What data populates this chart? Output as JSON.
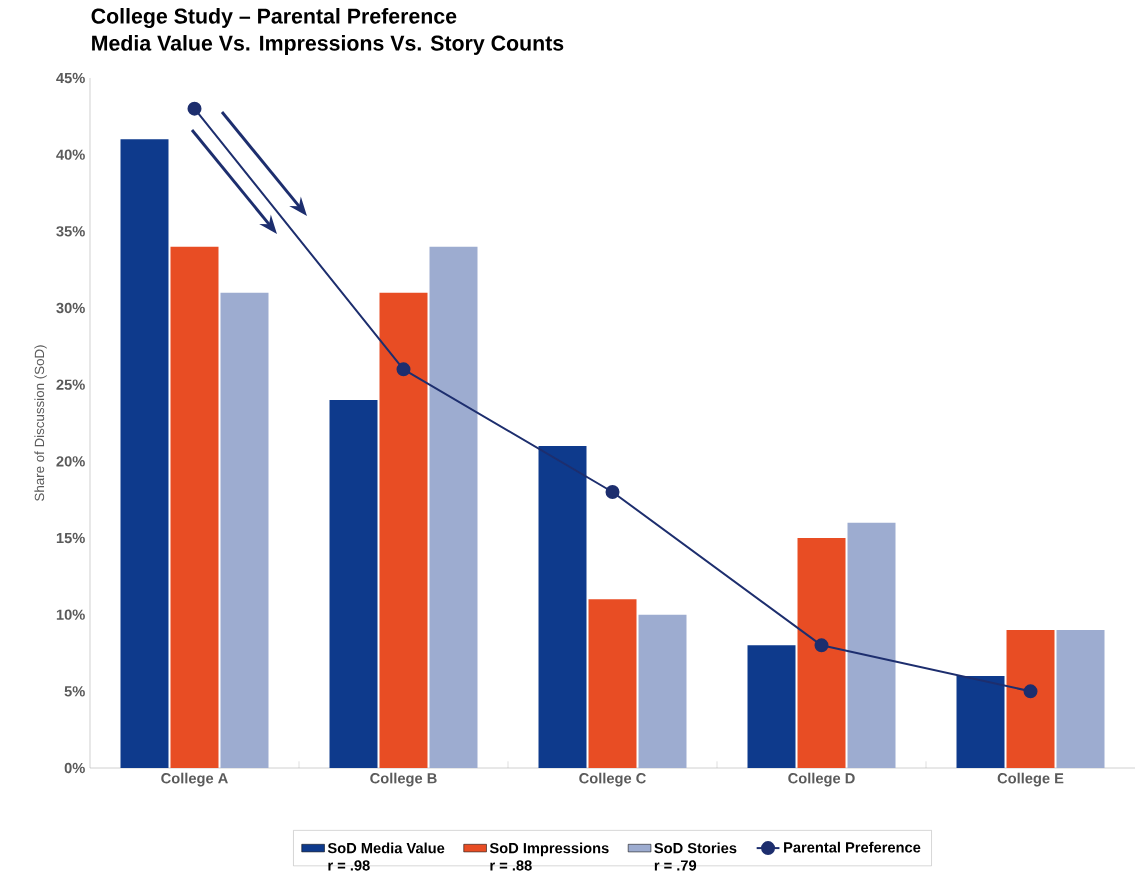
{
  "chart_data": {
    "type": "bar",
    "title": "College Study – Parental Preference",
    "subtitle": "Media Value Vs. Impressions Vs. Story Counts",
    "ylabel": "Share of Discussion (SoD)",
    "categories": [
      "College A",
      "College B",
      "College C",
      "College D",
      "College E"
    ],
    "series": [
      {
        "name": "SoD Media Value",
        "color": "#0e3a8c",
        "values": [
          41,
          24,
          21,
          8,
          6
        ]
      },
      {
        "name": "SoD Impressions",
        "color": "#e84d24",
        "values": [
          34,
          31,
          11,
          15,
          9
        ]
      },
      {
        "name": "SoD Stories",
        "color": "#9dacd0",
        "values": [
          31,
          34,
          10,
          16,
          9
        ]
      },
      {
        "name": "Parental Preference",
        "type": "line",
        "color": "#1d2e6e",
        "marker": "circle",
        "values": [
          43,
          26,
          18,
          8,
          5
        ]
      }
    ],
    "annotations": [
      "r = .98",
      "r = .88",
      "r = .79"
    ],
    "ylim": [
      0,
      45
    ],
    "yticks": [
      {
        "value": 0,
        "label": "0%"
      },
      {
        "value": 5,
        "label": "5%"
      },
      {
        "value": 10,
        "label": "10%"
      },
      {
        "value": 15,
        "label": "15%"
      },
      {
        "value": 20,
        "label": "20%"
      },
      {
        "value": 25,
        "label": "25%"
      },
      {
        "value": 30,
        "label": "30%"
      },
      {
        "value": 35,
        "label": "35%"
      },
      {
        "value": 40,
        "label": "40%"
      },
      {
        "value": 45,
        "label": "45%"
      }
    ],
    "grid": false,
    "legend": "bottom"
  }
}
